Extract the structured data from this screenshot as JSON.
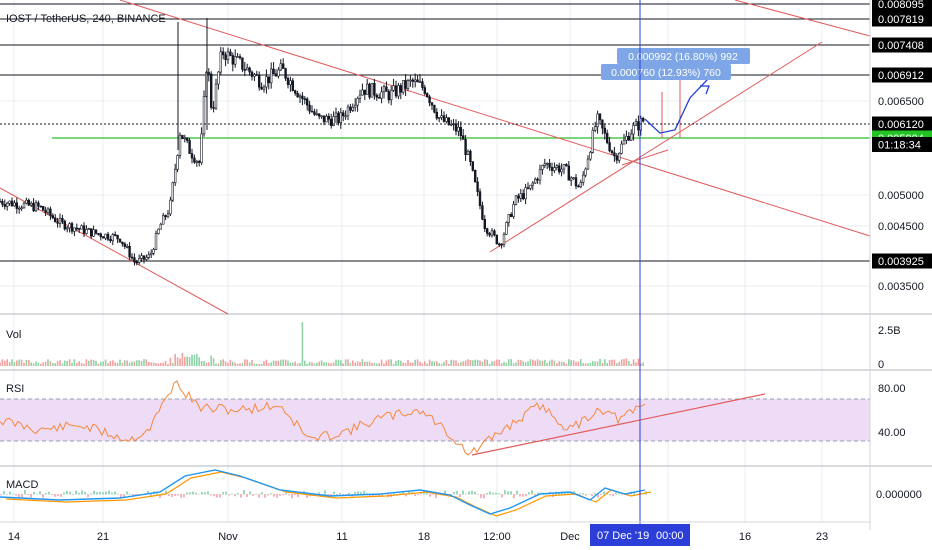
{
  "header": {
    "symbol_text": "IOST / TetherUS, 240, BINANCE"
  },
  "colors": {
    "background": "#ffffff",
    "grid": "#e9ecf1",
    "candle": "#131722",
    "support_green": "#2ebd2e",
    "trendline_red": "#e35b5b",
    "projection_blue": "#1f3fd6",
    "crosshair_blue": "#2b3fd8",
    "rsi_band": "#eedcf7",
    "rsi_line": "#f5883a",
    "macd_line": "#2196f3",
    "signal_line": "#ff9800",
    "measure_box": "#7ea6e6",
    "label_black": "#000000",
    "label_green": "#22c322",
    "label_blue": "#2b3fd8"
  },
  "chart_data": {
    "type": "candlestick",
    "price_axis": {
      "labels": [
        "0.008095",
        "0.007819",
        "0.007408",
        "0.006912",
        "0.006500",
        "0.006120",
        "0.005904",
        "0.005000",
        "0.004500",
        "0.003925",
        "0.003500"
      ],
      "highlighted_labels": [
        {
          "value": "0.008095",
          "style": "black"
        },
        {
          "value": "0.007819",
          "style": "black"
        },
        {
          "value": "0.007408",
          "style": "black"
        },
        {
          "value": "0.006912",
          "style": "black"
        },
        {
          "value": "0.006120",
          "style": "black"
        },
        {
          "value": "01:18:34",
          "style": "black"
        },
        {
          "value": "0.005904",
          "style": "green"
        },
        {
          "value": "0.003925",
          "style": "black"
        }
      ]
    },
    "horizontal_levels": [
      0.008095,
      0.007819,
      0.007408,
      0.006912,
      0.003925
    ],
    "current_price": 0.00612,
    "green_support_level": 0.005904,
    "time_axis": {
      "labels": [
        "14",
        "21",
        "Nov",
        "11",
        "18",
        "12:00",
        "Dec",
        "16",
        "23"
      ],
      "cursor_label": "07 Dec '19",
      "cursor_time": "00:00"
    },
    "price_path": [
      [
        0,
        0.0049
      ],
      [
        40,
        0.0048
      ],
      [
        60,
        0.00455
      ],
      [
        90,
        0.0044
      ],
      [
        120,
        0.0043
      ],
      [
        135,
        0.0039
      ],
      [
        150,
        0.004
      ],
      [
        160,
        0.0045
      ],
      [
        170,
        0.0048
      ],
      [
        180,
        0.006
      ],
      [
        190,
        0.0057
      ],
      [
        200,
        0.0055
      ],
      [
        207,
        0.0072
      ],
      [
        212,
        0.0063
      ],
      [
        222,
        0.0073
      ],
      [
        240,
        0.0071
      ],
      [
        262,
        0.0068
      ],
      [
        282,
        0.007
      ],
      [
        300,
        0.0066
      ],
      [
        318,
        0.0062
      ],
      [
        340,
        0.0062
      ],
      [
        362,
        0.0067
      ],
      [
        390,
        0.0066
      ],
      [
        412,
        0.0068
      ],
      [
        425,
        0.0067
      ],
      [
        440,
        0.0062
      ],
      [
        460,
        0.006
      ],
      [
        470,
        0.0055
      ],
      [
        485,
        0.0045
      ],
      [
        500,
        0.0042
      ],
      [
        515,
        0.0049
      ],
      [
        530,
        0.0051
      ],
      [
        545,
        0.0055
      ],
      [
        565,
        0.0054
      ],
      [
        580,
        0.0051
      ],
      [
        597,
        0.0062
      ],
      [
        615,
        0.0056
      ],
      [
        630,
        0.006
      ],
      [
        645,
        0.0062
      ]
    ],
    "projection_path": [
      [
        645,
        0.0062
      ],
      [
        660,
        0.00598
      ],
      [
        675,
        0.00603
      ],
      [
        690,
        0.00655
      ],
      [
        708,
        0.00685
      ]
    ],
    "measurements": [
      {
        "text": "0.000992 (16.80%) 992"
      },
      {
        "text": "0.000760 (12.93%) 760"
      }
    ],
    "volume_pane": {
      "title": "Vol",
      "axis_labels": [
        "2.5B",
        "0"
      ]
    },
    "rsi_pane": {
      "title": "RSI",
      "axis_labels": [
        "80.00",
        "40.00"
      ],
      "band": [
        30,
        70
      ]
    },
    "macd_pane": {
      "title": "MACD",
      "axis_labels": [
        "0.000000"
      ]
    }
  }
}
